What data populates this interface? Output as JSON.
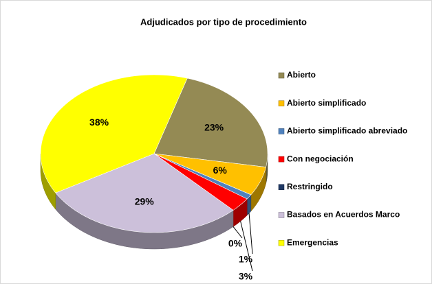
{
  "chart_data": {
    "type": "pie",
    "title": "Adjudicados por tipo de procedimiento",
    "categories": [
      "Abierto",
      "Abierto simplificado",
      "Abierto simplificado abreviado",
      "Con negociación",
      "Restringido",
      "Basados en Acuerdos Marco",
      "Emergencias"
    ],
    "values": [
      23,
      6,
      1,
      3,
      0,
      29,
      38
    ],
    "value_labels": [
      "23%",
      "6%",
      "1%",
      "3%",
      "0%",
      "29%",
      "38%"
    ],
    "colors": [
      "#948a54",
      "#ffc000",
      "#4f81bd",
      "#ff0000",
      "#1f3864",
      "#ccc0da",
      "#ffff00"
    ],
    "legend": "right"
  }
}
